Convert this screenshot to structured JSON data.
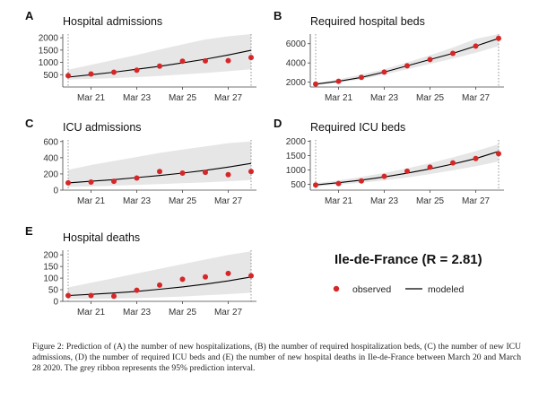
{
  "summary_label": "Ile-de-France (R = 2.81)",
  "legend": {
    "observed": "observed",
    "modeled": "modeled"
  },
  "colors": {
    "observed": "#d62728",
    "modeled": "#000000",
    "ribbon": "#e6e6e6",
    "axis": "#444444",
    "event_line": "#888888"
  },
  "caption": "Figure 2: Prediction of (A) the number of new hospitalizations, (B) the number of required hospitalization beds, (C) the number of new ICU admissions, (D) the number of required ICU beds and (E) the number of new hospital deaths in Ile-de-France between March 20 and March 28 2020. The grey ribbon represents the 95% prediction interval.",
  "chart_data": [
    {
      "panel": "A",
      "type": "line",
      "title": "Hospital admissions",
      "x": [
        "2020-03-20",
        "2020-03-21",
        "2020-03-22",
        "2020-03-23",
        "2020-03-24",
        "2020-03-25",
        "2020-03-26",
        "2020-03-27",
        "2020-03-28"
      ],
      "x_ticks": [
        "Mar 21",
        "Mar 23",
        "Mar 25",
        "Mar 27"
      ],
      "ylim": [
        0,
        2150
      ],
      "y_ticks": [
        500,
        1000,
        1500,
        2000
      ],
      "series": [
        {
          "name": "observed",
          "kind": "points",
          "values": [
            460,
            530,
            600,
            680,
            850,
            1050,
            1060,
            1070,
            1200
          ]
        },
        {
          "name": "modeled",
          "kind": "line",
          "values": [
            400,
            500,
            600,
            720,
            840,
            980,
            1130,
            1300,
            1490
          ]
        }
      ],
      "interval_95": {
        "lower": [
          300,
          330,
          360,
          400,
          450,
          510,
          570,
          640,
          720
        ],
        "upper": [
          700,
          900,
          1100,
          1300,
          1520,
          1730,
          1930,
          2060,
          2150
        ]
      }
    },
    {
      "panel": "B",
      "type": "line",
      "title": "Required hospital beds",
      "x": [
        "2020-03-20",
        "2020-03-21",
        "2020-03-22",
        "2020-03-23",
        "2020-03-24",
        "2020-03-25",
        "2020-03-26",
        "2020-03-27",
        "2020-03-28"
      ],
      "x_ticks": [
        "Mar 21",
        "Mar 23",
        "Mar 25",
        "Mar 27"
      ],
      "ylim": [
        1500,
        7000
      ],
      "y_ticks": [
        2000,
        4000,
        6000
      ],
      "series": [
        {
          "name": "observed",
          "kind": "points",
          "values": [
            1800,
            2100,
            2500,
            3050,
            3700,
            4350,
            5000,
            5750,
            6550
          ]
        },
        {
          "name": "modeled",
          "kind": "line",
          "values": [
            1800,
            2100,
            2500,
            3050,
            3700,
            4350,
            5000,
            5750,
            6550
          ]
        }
      ],
      "interval_95": {
        "lower": [
          1700,
          1950,
          2300,
          2800,
          3350,
          3900,
          4450,
          5050,
          5750
        ],
        "upper": [
          1900,
          2300,
          2800,
          3350,
          4050,
          4800,
          5600,
          6500,
          7000
        ]
      }
    },
    {
      "panel": "C",
      "type": "line",
      "title": "ICU admissions",
      "x": [
        "2020-03-20",
        "2020-03-21",
        "2020-03-22",
        "2020-03-23",
        "2020-03-24",
        "2020-03-25",
        "2020-03-26",
        "2020-03-27",
        "2020-03-28"
      ],
      "x_ticks": [
        "Mar 21",
        "Mar 23",
        "Mar 25",
        "Mar 27"
      ],
      "ylim": [
        0,
        620
      ],
      "y_ticks": [
        0,
        200,
        400,
        600
      ],
      "series": [
        {
          "name": "observed",
          "kind": "points",
          "values": [
            90,
            100,
            110,
            150,
            230,
            210,
            220,
            190,
            230
          ]
        },
        {
          "name": "modeled",
          "kind": "line",
          "values": [
            90,
            110,
            130,
            155,
            180,
            210,
            245,
            285,
            330
          ]
        }
      ],
      "interval_95": {
        "lower": [
          40,
          45,
          55,
          65,
          75,
          85,
          95,
          110,
          125
        ],
        "upper": [
          250,
          310,
          360,
          410,
          460,
          500,
          540,
          580,
          600
        ]
      }
    },
    {
      "panel": "D",
      "type": "line",
      "title": "Required ICU beds",
      "x": [
        "2020-03-20",
        "2020-03-21",
        "2020-03-22",
        "2020-03-23",
        "2020-03-24",
        "2020-03-25",
        "2020-03-26",
        "2020-03-27",
        "2020-03-28"
      ],
      "x_ticks": [
        "Mar 21",
        "Mar 23",
        "Mar 25",
        "Mar 27"
      ],
      "ylim": [
        300,
        2050
      ],
      "y_ticks": [
        500,
        1000,
        1500,
        2000
      ],
      "series": [
        {
          "name": "observed",
          "kind": "points",
          "values": [
            480,
            530,
            620,
            780,
            960,
            1100,
            1250,
            1400,
            1570
          ]
        },
        {
          "name": "modeled",
          "kind": "line",
          "values": [
            480,
            560,
            650,
            760,
            890,
            1040,
            1210,
            1400,
            1650
          ]
        }
      ],
      "interval_95": {
        "lower": [
          430,
          490,
          560,
          640,
          740,
          860,
          990,
          1130,
          1300
        ],
        "upper": [
          540,
          640,
          760,
          900,
          1060,
          1240,
          1440,
          1660,
          1900
        ]
      }
    },
    {
      "panel": "E",
      "type": "line",
      "title": "Hospital deaths",
      "x": [
        "2020-03-20",
        "2020-03-21",
        "2020-03-22",
        "2020-03-23",
        "2020-03-24",
        "2020-03-25",
        "2020-03-26",
        "2020-03-27",
        "2020-03-28"
      ],
      "x_ticks": [
        "Mar 21",
        "Mar 23",
        "Mar 25",
        "Mar 27"
      ],
      "ylim": [
        0,
        220
      ],
      "y_ticks": [
        0,
        50,
        100,
        150,
        200
      ],
      "series": [
        {
          "name": "observed",
          "kind": "points",
          "values": [
            25,
            25,
            22,
            48,
            70,
            95,
            105,
            120,
            110
          ]
        },
        {
          "name": "modeled",
          "kind": "line",
          "values": [
            25,
            30,
            36,
            43,
            52,
            62,
            74,
            88,
            105
          ]
        }
      ],
      "interval_95": {
        "lower": [
          10,
          10,
          12,
          14,
          17,
          21,
          26,
          31,
          37
        ],
        "upper": [
          60,
          80,
          100,
          120,
          140,
          160,
          180,
          200,
          215
        ]
      }
    }
  ]
}
